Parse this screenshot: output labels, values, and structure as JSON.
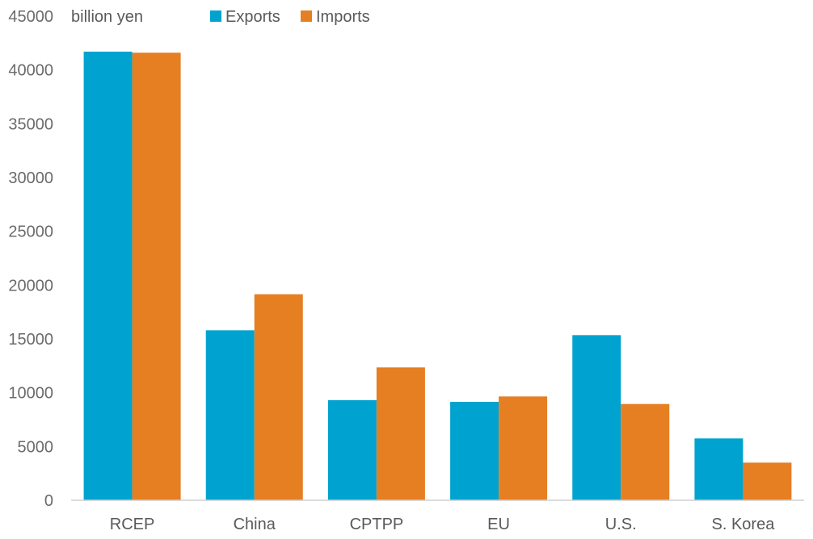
{
  "chart_data": {
    "type": "bar",
    "unit_label": "billion yen",
    "categories": [
      "RCEP",
      "China",
      "CPTPP",
      "EU",
      "U.S.",
      "S. Korea"
    ],
    "series": [
      {
        "name": "Exports",
        "color": "#00a3cf",
        "values": [
          41700,
          15800,
          9300,
          9150,
          15350,
          5750
        ]
      },
      {
        "name": "Imports",
        "color": "#e67e22",
        "values": [
          41600,
          19150,
          12350,
          9650,
          8950,
          3500
        ]
      }
    ],
    "ylim": [
      0,
      45000
    ],
    "yticks": [
      0,
      5000,
      10000,
      15000,
      20000,
      25000,
      30000,
      35000,
      40000,
      45000
    ],
    "grid": false,
    "legend_position": "top"
  }
}
